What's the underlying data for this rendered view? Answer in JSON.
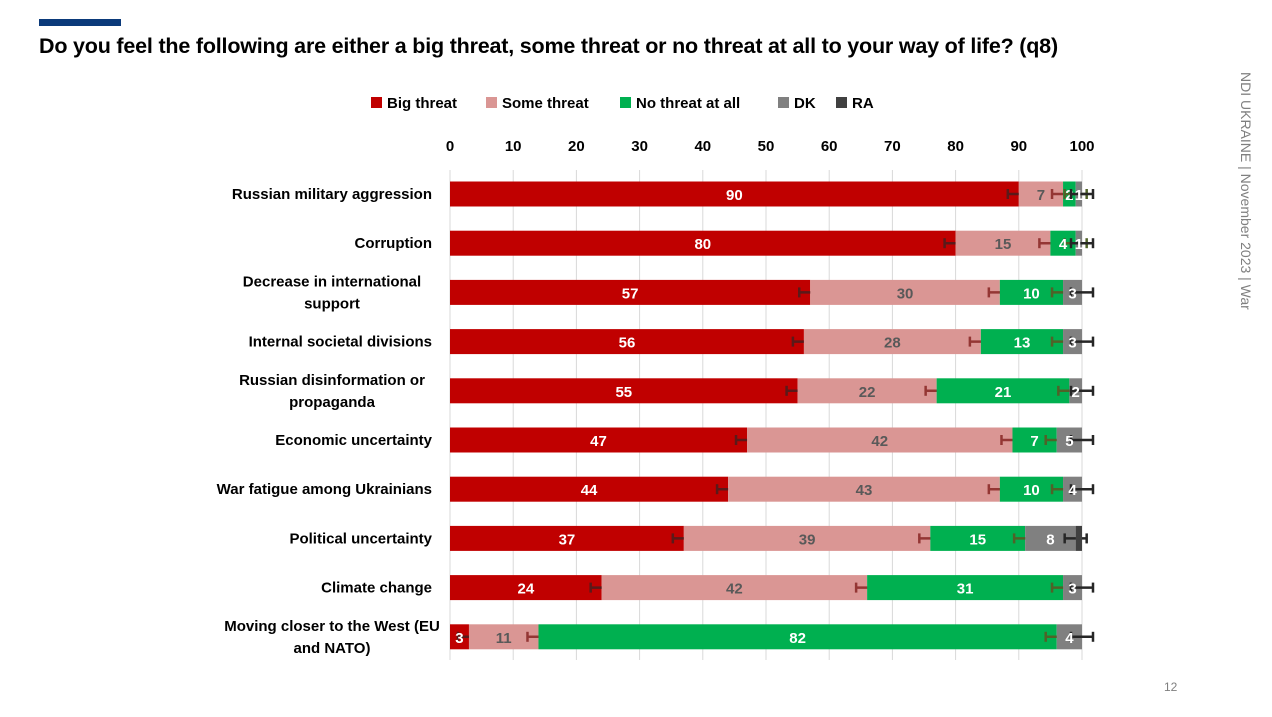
{
  "page": {
    "title": "Do you feel the following are either a big threat, some threat or no threat at all to your way of life? (q8)",
    "side_note": "NDI UKRAINE | November 2023 | War",
    "page_number": "12",
    "accent_color": "#0b3a7a"
  },
  "chart_data": {
    "type": "bar",
    "orientation": "horizontal",
    "stacked": true,
    "title": "Do you feel the following are either a big threat, some threat or no threat at all to your way of life? (q8)",
    "xlabel": "",
    "ylabel": "",
    "xlim": [
      0,
      100
    ],
    "x_ticks": [
      "0",
      "10",
      "20",
      "30",
      "40",
      "50",
      "60",
      "70",
      "80",
      "90",
      "100"
    ],
    "x_tick_values": [
      0,
      10,
      20,
      30,
      40,
      50,
      60,
      70,
      80,
      90,
      100
    ],
    "grid": true,
    "legend_position": "top",
    "error_bars": true,
    "categories": [
      [
        "Russian military aggression"
      ],
      [
        "Corruption"
      ],
      [
        "Decrease in international",
        "support"
      ],
      [
        "Internal societal divisions"
      ],
      [
        "Russian disinformation or",
        "propaganda"
      ],
      [
        "Economic uncertainty"
      ],
      [
        "War fatigue among Ukrainians"
      ],
      [
        "Political uncertainty"
      ],
      [
        "Climate change"
      ],
      [
        "Moving closer to the West (EU",
        "and NATO)"
      ]
    ],
    "series": [
      {
        "name": "Big threat",
        "color": "#c00000",
        "label_color": "#ffffff",
        "error_color": "#5a1a1a",
        "values": [
          90,
          80,
          57,
          56,
          55,
          47,
          44,
          37,
          24,
          3
        ]
      },
      {
        "name": "Some threat",
        "color": "#da9694",
        "label_color": "#595959",
        "error_color": "#943634",
        "values": [
          7,
          15,
          30,
          28,
          22,
          42,
          43,
          39,
          42,
          11
        ]
      },
      {
        "name": "No threat at all",
        "color": "#00b050",
        "label_color": "#ffffff",
        "error_color": "#4f6228",
        "values": [
          2,
          4,
          10,
          13,
          21,
          7,
          10,
          15,
          31,
          82
        ]
      },
      {
        "name": "DK",
        "color": "#808080",
        "label_color": "#ffffff",
        "error_color": "#262626",
        "values": [
          1,
          1,
          3,
          3,
          2,
          5,
          4,
          8,
          3,
          4
        ]
      },
      {
        "name": "RA",
        "color": "#404040",
        "label_color": "#ffffff",
        "error_color": "#262626",
        "values": [
          0,
          0,
          0,
          0,
          0,
          0,
          0,
          1,
          0,
          0
        ]
      }
    ]
  }
}
